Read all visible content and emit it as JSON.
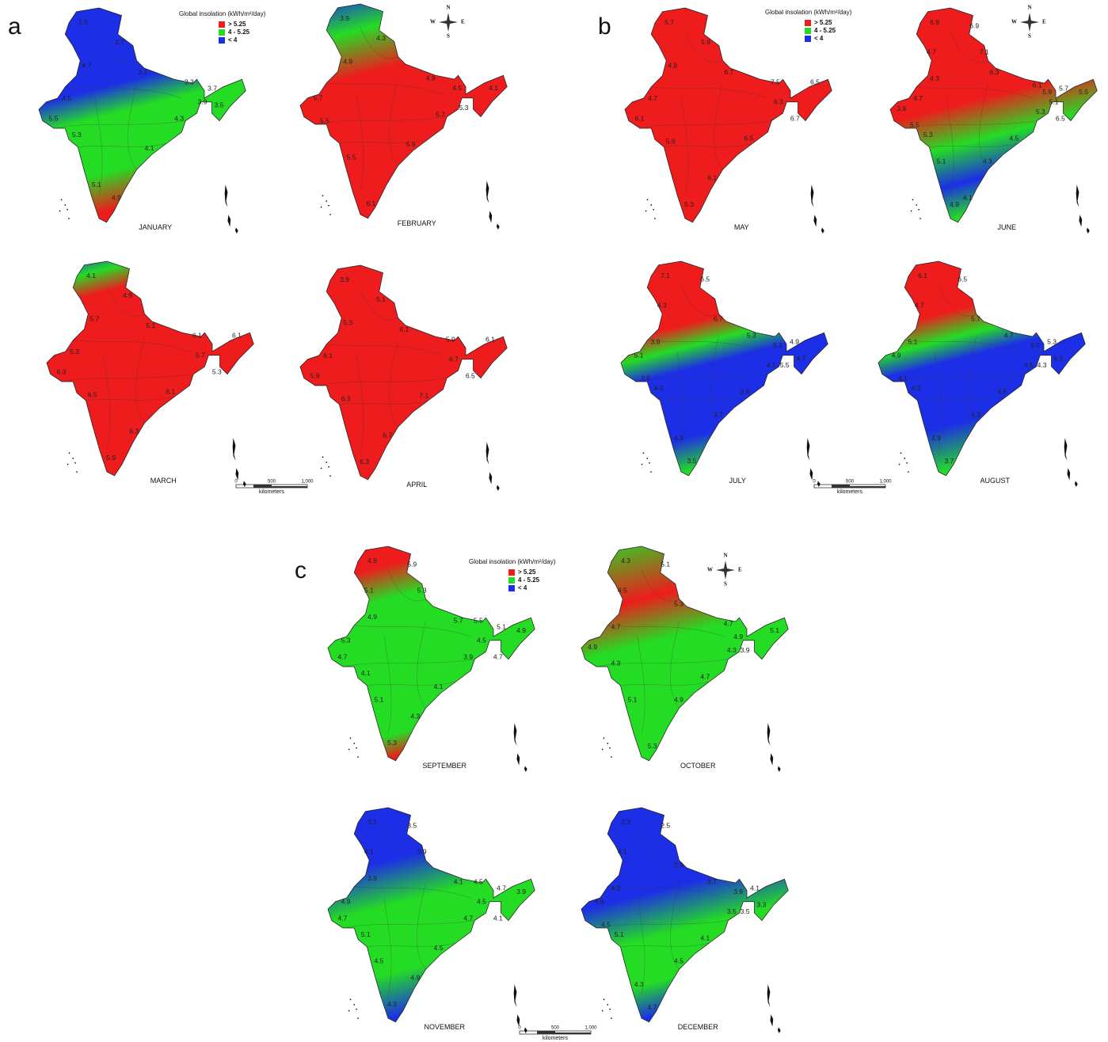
{
  "panels": [
    {
      "letter": "a",
      "legend": {
        "title": "Global insolation (kWh/m²/day)",
        "items": [
          {
            "label": "> 5.25",
            "color": "#ee1c1c"
          },
          {
            "label": "4 - 5.25",
            "color": "#24dc24"
          },
          {
            "label": "< 4",
            "color": "#1c2ee6"
          }
        ]
      },
      "compass": [
        "N",
        "E",
        "S",
        "W"
      ],
      "scale": {
        "ticks": [
          "0",
          "500",
          "1,000"
        ],
        "unit": "kilometers"
      },
      "maps": [
        {
          "month": "JANUARY",
          "labels": [
            2.5,
            2.7,
            3.1,
            3.3,
            3.7,
            3.5,
            3.9,
            4.3,
            4.1,
            4.9,
            5.1,
            5.3,
            5.5,
            4.5,
            4.7
          ]
        },
        {
          "month": "FEBRUARY",
          "labels": [
            3.9,
            4.3,
            4.9,
            4.5,
            4.1,
            5.3,
            5.7,
            5.9,
            6.1,
            5.5,
            5.5,
            5.7,
            4.9
          ]
        },
        {
          "month": "MARCH",
          "labels": [
            4.1,
            4.9,
            5.1,
            6.1,
            6.1,
            5.3,
            5.7,
            6.1,
            6.3,
            5.9,
            6.5,
            6.3,
            5.3,
            5.7
          ]
        },
        {
          "month": "APRIL",
          "labels": [
            3.9,
            5.1,
            6.1,
            5.9,
            6.1,
            6.5,
            6.7,
            7.1,
            6.7,
            6.3,
            6.3,
            5.9,
            6.1,
            5.3
          ]
        }
      ]
    },
    {
      "letter": "b",
      "legend": {
        "title": "Global insolation (kWh/m²/day)",
        "items": [
          {
            "label": "> 5.25",
            "color": "#ee1c1c"
          },
          {
            "label": "4 - 5.25",
            "color": "#24dc24"
          },
          {
            "label": "< 4",
            "color": "#1c2ee6"
          }
        ]
      },
      "compass": [
        "N",
        "E",
        "S",
        "W"
      ],
      "scale": {
        "ticks": [
          "0",
          "500",
          "1,000"
        ],
        "unit": "kilometers"
      },
      "maps": [
        {
          "month": "MAY",
          "labels": [
            5.7,
            5.9,
            6.7,
            7.5,
            6.5,
            6.7,
            6.3,
            6.5,
            6.1,
            5.3,
            5.9,
            6.1,
            4.7,
            4.9
          ]
        },
        {
          "month": "JUNE",
          "labels": [
            6.9,
            6.9,
            7.1,
            6.3,
            6.1,
            5.9,
            5.7,
            5.5,
            6.5,
            5.1,
            5.3,
            4.5,
            4.3,
            4.1,
            4.9,
            5.1,
            5.3,
            5.5,
            3.9,
            4.7,
            4.3,
            4.7
          ]
        },
        {
          "month": "JULY",
          "labels": [
            7.1,
            6.5,
            6.7,
            5.3,
            5.1,
            4.9,
            4.7,
            5.5,
            4.1,
            3.9,
            3.7,
            3.5,
            4.3,
            4.5,
            3.5,
            5.1,
            3.9,
            4.3
          ]
        },
        {
          "month": "AUGUST",
          "labels": [
            6.1,
            6.5,
            5.7,
            4.7,
            5.5,
            5.3,
            5.1,
            4.3,
            4.5,
            4.5,
            4.3,
            3.7,
            3.9,
            4.3,
            4.1,
            4.9,
            5.1,
            4.7
          ]
        }
      ]
    },
    {
      "letter": "c",
      "legend": {
        "title": "Global insolation (kWh/m²/day)",
        "items": [
          {
            "label": "> 5.25",
            "color": "#ee1c1c"
          },
          {
            "label": "4 - 5.25",
            "color": "#24dc24"
          },
          {
            "label": "< 4",
            "color": "#1c2ee6"
          }
        ]
      },
      "compass": [
        "N",
        "E",
        "S",
        "W"
      ],
      "scale": {
        "ticks": [
          "0",
          "500",
          "1,000"
        ],
        "unit": "kilometers"
      },
      "maps": [
        {
          "month": "SEPTEMBER",
          "labels": [
            4.9,
            5.9,
            5.3,
            5.7,
            5.5,
            5.1,
            4.9,
            4.7,
            4.5,
            3.9,
            4.1,
            4.3,
            5.3,
            5.1,
            4.1,
            4.7,
            5.3,
            4.9,
            5.1
          ]
        },
        {
          "month": "OCTOBER",
          "labels": [
            4.3,
            5.1,
            5.3,
            4.7,
            4.9,
            5.1,
            3.9,
            4.3,
            4.7,
            4.9,
            5.3,
            5.1,
            4.3,
            4.9,
            4.7,
            4.5
          ]
        },
        {
          "month": "NOVEMBER",
          "labels": [
            3.1,
            3.5,
            3.9,
            4.1,
            4.5,
            4.7,
            3.9,
            4.1,
            4.5,
            4.7,
            4.5,
            4.9,
            4.3,
            4.5,
            5.1,
            4.7,
            4.9,
            3.9,
            4.1
          ]
        },
        {
          "month": "DECEMBER",
          "labels": [
            2.3,
            2.5,
            2.9,
            3.7,
            3.9,
            4.1,
            3.3,
            3.5,
            3.5,
            4.1,
            4.5,
            4.7,
            4.3,
            5.1,
            4.5,
            4.9,
            4.3,
            4.1
          ]
        }
      ]
    }
  ]
}
